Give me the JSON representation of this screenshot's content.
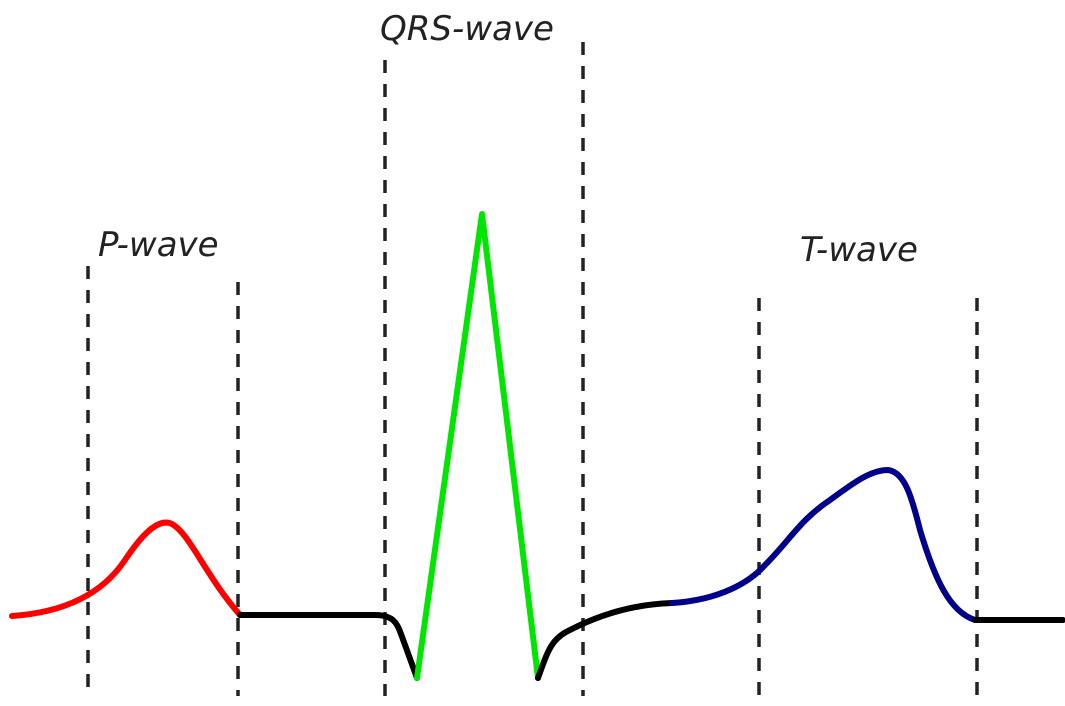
{
  "labels": {
    "p_wave": "P-wave",
    "qrs_wave": "QRS-wave",
    "t_wave": "T-wave"
  },
  "colors": {
    "p_wave": "#ff0000",
    "qrs_wave": "#00e600",
    "t_wave": "#00008b",
    "baseline": "#000000",
    "guides": "#222222"
  }
}
